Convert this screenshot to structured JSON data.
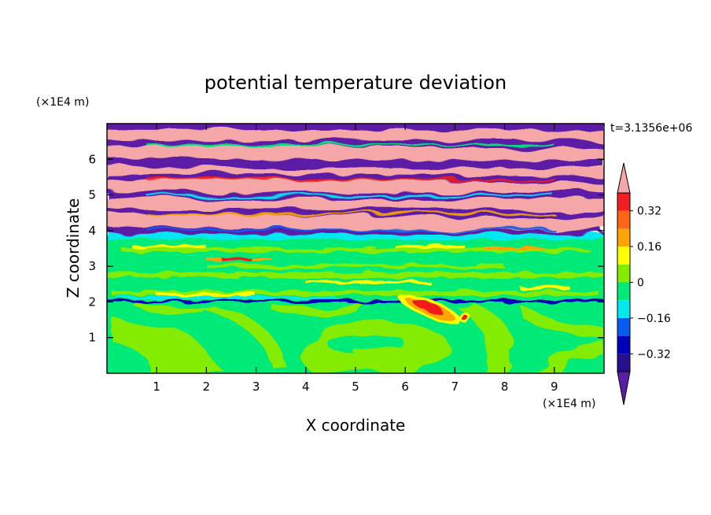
{
  "chart_data": {
    "type": "heatmap",
    "title": "potential temperature deviation",
    "xlabel": "X coordinate",
    "ylabel": "Z coordinate",
    "x_unit": "(×1E4 m)",
    "y_unit": "(×1E4 m)",
    "time_label": "t=3.1356e+06",
    "xlim": [
      0,
      10
    ],
    "ylim": [
      0,
      7
    ],
    "xticks": [
      "1",
      "2",
      "3",
      "4",
      "5",
      "6",
      "7",
      "8",
      "9"
    ],
    "yticks": [
      "1",
      "2",
      "3",
      "4",
      "5",
      "6"
    ],
    "grid": false,
    "colorbar": {
      "levels": [
        -0.4,
        -0.32,
        -0.24,
        -0.16,
        -0.08,
        0,
        0.08,
        0.16,
        0.24,
        0.32,
        0.4
      ],
      "tick_labels": [
        "-0.32",
        "-0.16",
        "0",
        "0.16",
        "0.32"
      ],
      "colors": [
        "#5b1ea6",
        "#2a0f8c",
        "#0000bb",
        "#0a5cf0",
        "#00e8f0",
        "#00ea78",
        "#84ec00",
        "#ffff00",
        "#ffa400",
        "#ff6418",
        "#f01e1e",
        "#f5a6a6"
      ],
      "extend": "both"
    },
    "regions": {
      "lower_z_0_to_2": "mostly 0 to 0.08 with filaments near 0.08 to 0.16",
      "warm_core": {
        "x": 6.5,
        "z": 1.8,
        "value": 0.36
      },
      "band_z_2": "thin negative line (about -0.32) with scattered positive cells",
      "z_2_to_3_8": "near 0, with banded positive filaments near z=2.3 and z=3.2",
      "z_3_8_to_4": "cyan band, about -0.08 to 0",
      "z_4_to_7": "alternating layers of strongly positive (above 0.4) and strongly negative (below -0.4)"
    }
  }
}
